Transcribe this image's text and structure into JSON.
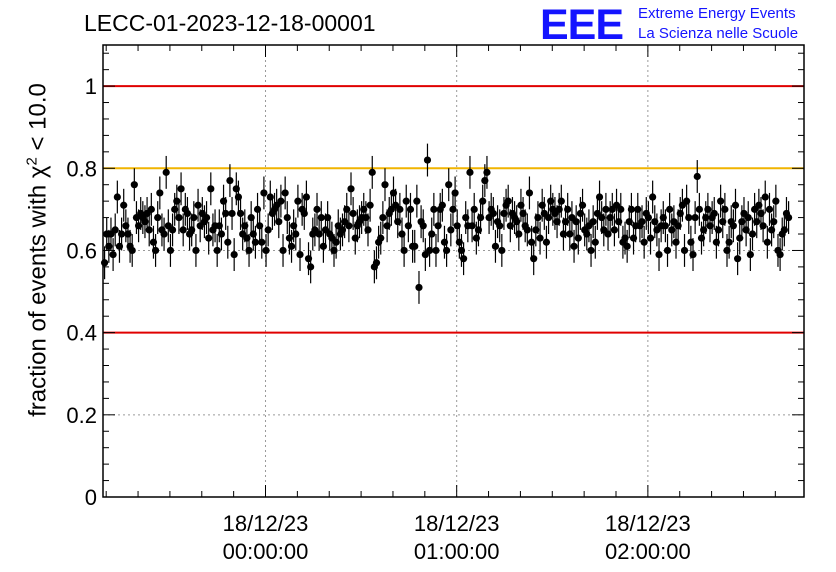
{
  "header": {
    "title": "LECC-01-2023-12-18-00001"
  },
  "logo": {
    "mark": "EEE",
    "line1": "Extreme Energy Events",
    "line2": "La Scienza nelle Scuole"
  },
  "colors": {
    "upper_limit_line": "#e00000",
    "lower_limit_line": "#e00000",
    "reference_line": "#f0b400",
    "points": "#000000",
    "logo": "#1414ff"
  },
  "chart_data": {
    "type": "scatter",
    "ylabel": "fraction of events with χ² < 10.0",
    "ylabel_base": "fraction of events with χ",
    "ylabel_sup": "2",
    "ylabel_tail": " < 10.0",
    "ylim": [
      0,
      1.1
    ],
    "yticks": [
      0,
      0.2,
      0.4,
      0.6,
      0.8,
      1
    ],
    "ytick_labels": [
      "0",
      "0.2",
      "0.4",
      "0.6",
      "0.8",
      "1"
    ],
    "xlim": [
      "2023-12-17 23:09:00",
      "2023-12-18 02:49:00"
    ],
    "xticks": [
      "2023-12-18 00:00:00",
      "2023-12-18 01:00:00",
      "2023-12-18 02:00:00"
    ],
    "xtick_labels": [
      [
        "18/12/23",
        "00:00:00"
      ],
      [
        "18/12/23",
        "01:00:00"
      ],
      [
        "18/12/23",
        "02:00:00"
      ]
    ],
    "grid": true,
    "horizontal_lines": [
      {
        "y": 1.0,
        "color": "#e00000"
      },
      {
        "y": 0.8,
        "color": "#f0b400"
      },
      {
        "y": 0.4,
        "color": "#e00000"
      }
    ],
    "series": [
      {
        "x_start": "2023-12-17 23:09:30",
        "x_step_seconds": 40,
        "error": 0.04,
        "y": [
          0.57,
          0.64,
          0.61,
          0.64,
          0.59,
          0.65,
          0.73,
          0.61,
          0.64,
          0.71,
          0.66,
          0.64,
          0.61,
          0.6,
          0.76,
          0.68,
          0.66,
          0.69,
          0.68,
          0.67,
          0.69,
          0.65,
          0.7,
          0.62,
          0.6,
          0.68,
          0.74,
          0.65,
          0.64,
          0.79,
          0.66,
          0.6,
          0.65,
          0.7,
          0.72,
          0.68,
          0.75,
          0.65,
          0.7,
          0.69,
          0.64,
          0.65,
          0.68,
          0.6,
          0.71,
          0.66,
          0.69,
          0.67,
          0.68,
          0.63,
          0.75,
          0.65,
          0.66,
          0.6,
          0.66,
          0.64,
          0.72,
          0.69,
          0.62,
          0.77,
          0.69,
          0.59,
          0.75,
          0.73,
          0.69,
          0.64,
          0.66,
          0.63,
          0.6,
          0.68,
          0.64,
          0.62,
          0.7,
          0.66,
          0.62,
          0.74,
          0.6,
          0.65,
          0.73,
          0.69,
          0.7,
          0.71,
          0.67,
          0.72,
          0.6,
          0.74,
          0.68,
          0.63,
          0.61,
          0.66,
          0.64,
          0.72,
          0.59,
          0.7,
          0.69,
          0.73,
          0.58,
          0.56,
          0.64,
          0.65,
          0.7,
          0.64,
          0.68,
          0.61,
          0.65,
          0.68,
          0.64,
          0.63,
          0.6,
          0.62,
          0.66,
          0.64,
          0.65,
          0.67,
          0.7,
          0.66,
          0.75,
          0.69,
          0.63,
          0.66,
          0.67,
          0.68,
          0.7,
          0.68,
          0.65,
          0.71,
          0.79,
          0.56,
          0.57,
          0.62,
          0.63,
          0.68,
          0.76,
          0.66,
          0.69,
          0.7,
          0.74,
          0.71,
          0.67,
          0.7,
          0.64,
          0.6,
          0.72,
          0.66,
          0.7,
          0.61,
          0.61,
          0.72,
          0.51,
          0.67,
          0.66,
          0.59,
          0.82,
          0.6,
          0.64,
          0.7,
          0.6,
          0.66,
          0.7,
          0.71,
          0.62,
          0.6,
          0.76,
          0.65,
          0.7,
          0.74,
          0.66,
          0.62,
          0.6,
          0.58,
          0.68,
          0.66,
          0.79,
          0.66,
          0.7,
          0.63,
          0.65,
          0.68,
          0.72,
          0.77,
          0.79,
          0.68,
          0.7,
          0.69,
          0.61,
          0.67,
          0.66,
          0.6,
          0.69,
          0.71,
          0.72,
          0.66,
          0.69,
          0.68,
          0.67,
          0.64,
          0.71,
          0.69,
          0.66,
          0.65,
          0.74,
          0.62,
          0.58,
          0.65,
          0.68,
          0.63,
          0.71,
          0.69,
          0.62,
          0.68,
          0.72,
          0.7,
          0.69,
          0.67,
          0.7,
          0.72,
          0.64,
          0.67,
          0.7,
          0.64,
          0.68,
          0.61,
          0.67,
          0.63,
          0.69,
          0.71,
          0.65,
          0.64,
          0.66,
          0.6,
          0.67,
          0.62,
          0.69,
          0.73,
          0.68,
          0.65,
          0.7,
          0.64,
          0.68,
          0.7,
          0.65,
          0.71,
          0.67,
          0.7,
          0.62,
          0.63,
          0.61,
          0.67,
          0.7,
          0.63,
          0.66,
          0.7,
          0.66,
          0.67,
          0.62,
          0.69,
          0.68,
          0.63,
          0.73,
          0.67,
          0.65,
          0.59,
          0.66,
          0.68,
          0.66,
          0.6,
          0.7,
          0.65,
          0.67,
          0.62,
          0.66,
          0.69,
          0.71,
          0.6,
          0.72,
          0.68,
          0.62,
          0.59,
          0.68,
          0.78,
          0.7,
          0.63,
          0.65,
          0.68,
          0.7,
          0.66,
          0.68,
          0.69,
          0.62,
          0.65,
          0.72,
          0.67,
          0.7,
          0.6,
          0.62,
          0.67,
          0.66,
          0.71,
          0.58,
          0.63,
          0.67,
          0.69,
          0.65,
          0.68,
          0.59,
          0.64,
          0.7,
          0.67,
          0.71,
          0.69,
          0.66,
          0.73,
          0.62,
          0.7,
          0.65,
          0.67,
          0.72,
          0.6,
          0.59,
          0.64,
          0.65,
          0.69,
          0.68
        ]
      }
    ]
  }
}
